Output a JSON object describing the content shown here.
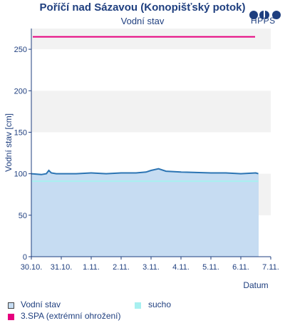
{
  "header": {
    "title": "Poříčí nad Sázavou (Konopišťský potok)",
    "subtitle": "Vodní stav",
    "logo_text": "HPPS"
  },
  "colors": {
    "axis": "#1f3f7f",
    "band": "#f2f2f2",
    "area_fill": "#c6dcf2",
    "series_line": "#2c74b3",
    "sucho": "#a8f0f0",
    "spa3": "#e6007e"
  },
  "chart_data": {
    "type": "line",
    "title": "Poříčí nad Sázavou (Konopišťský potok)",
    "subtitle": "Vodní stav",
    "xlabel": "Datum",
    "ylabel": "Vodní stav [cm]",
    "ylim": [
      0,
      275
    ],
    "yticks": [
      0,
      50,
      100,
      150,
      200,
      250
    ],
    "xlim_days": [
      0,
      8
    ],
    "xticks": [
      "30.10.",
      "31.10.",
      "1.11.",
      "2.11.",
      "3.11.",
      "4.11.",
      "5.11.",
      "6.11.",
      "7.11."
    ],
    "grid": "alternating horizontal bands",
    "legend_position": "bottom",
    "series": [
      {
        "name": "Vodní stav",
        "x": [
          "30.10. 00:00",
          "30.10. 08:00",
          "30.10. 12:00",
          "30.10. 14:00",
          "30.10. 16:00",
          "30.10. 20:00",
          "31.10. 00:00",
          "31.10. 12:00",
          "1.11. 00:00",
          "1.11. 12:00",
          "2.11. 00:00",
          "2.11. 12:00",
          "2.11. 20:00",
          "3.11. 00:00",
          "3.11. 06:00",
          "3.11. 12:00",
          "4.11. 00:00",
          "5.11. 00:00",
          "5.11. 12:00",
          "6.11. 00:00",
          "6.11. 12:00",
          "6.11. 14:00"
        ],
        "y": [
          100,
          99,
          100,
          104,
          101,
          100,
          100,
          100,
          101,
          100,
          101,
          101,
          102,
          104,
          106,
          103,
          102,
          101,
          101,
          100,
          101,
          100
        ]
      },
      {
        "name": "sucho",
        "type": "threshold",
        "y": 91
      },
      {
        "name": "3.SPA (extrémní ohrožení)",
        "type": "threshold",
        "y": 265
      }
    ]
  }
}
